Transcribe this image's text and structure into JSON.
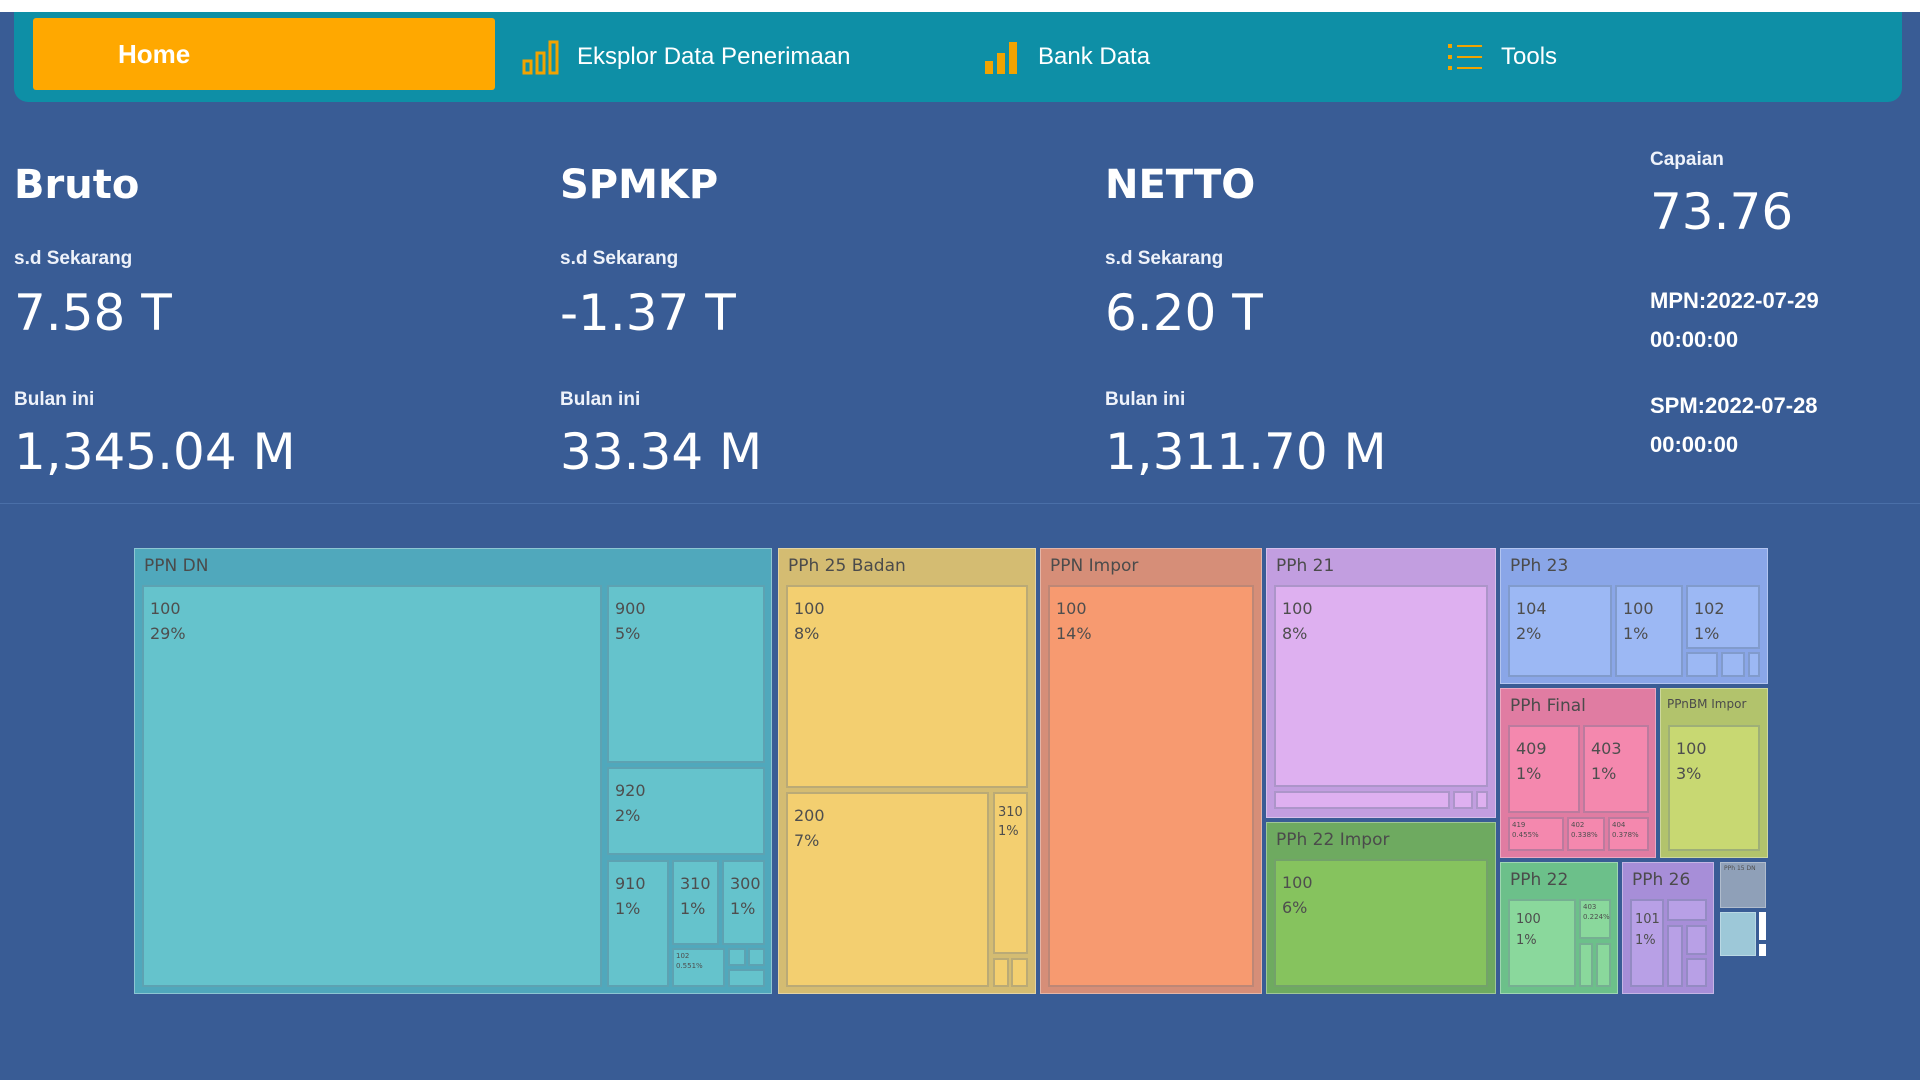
{
  "nav": {
    "home": "Home",
    "items": [
      {
        "label": "Eksplor Data Penerimaan",
        "icon": "bar-chart-outline-icon"
      },
      {
        "label": "Bank Data",
        "icon": "bar-chart-filled-icon"
      },
      {
        "label": "Tools",
        "icon": "list-icon"
      }
    ],
    "colors": {
      "bar": "#0e8fa6",
      "home": "#ffa800",
      "icons": "#f2a300"
    }
  },
  "metrics": [
    {
      "title": "Bruto",
      "sd_label": "s.d Sekarang",
      "sd_value": "7.58 T",
      "month_label": "Bulan ini",
      "month_value": "1,345.04 M"
    },
    {
      "title": "SPMKP",
      "sd_label": "s.d Sekarang",
      "sd_value": "-1.37 T",
      "month_label": "Bulan ini",
      "month_value": "33.34 M"
    },
    {
      "title": "NETTO",
      "sd_label": "s.d Sekarang",
      "sd_value": "6.20 T",
      "month_label": "Bulan ini",
      "month_value": "1,311.70 M"
    }
  ],
  "side": {
    "capaian_label": "Capaian",
    "capaian_value": "73.76",
    "mpn": "MPN:2022-07-29 00:00:00",
    "spm": "SPM:2022-07-28 00:00:00"
  },
  "treemap": {
    "groups": [
      {
        "name": "PPN DN",
        "color": "#50a8bc",
        "tile": "#65c3cc",
        "tiles": [
          {
            "code": "100",
            "pct": "29%"
          },
          {
            "code": "900",
            "pct": "5%"
          },
          {
            "code": "920",
            "pct": "2%"
          },
          {
            "code": "910",
            "pct": "1%"
          },
          {
            "code": "310",
            "pct": "1%"
          },
          {
            "code": "300",
            "pct": "1%"
          },
          {
            "code": "102",
            "pct": "0.551%"
          }
        ]
      },
      {
        "name": "PPh 25 Badan",
        "color": "#d4bc72",
        "tile": "#f3cf70",
        "tiles": [
          {
            "code": "100",
            "pct": "8%"
          },
          {
            "code": "200",
            "pct": "7%"
          },
          {
            "code": "310",
            "pct": "1%"
          }
        ]
      },
      {
        "name": "PPN Impor",
        "color": "#d68e78",
        "tile": "#f79a70",
        "tiles": [
          {
            "code": "100",
            "pct": "14%"
          }
        ]
      },
      {
        "name": "PPh 21",
        "color": "#c29ee0",
        "tile": "#deb0f0",
        "tiles": [
          {
            "code": "100",
            "pct": "8%"
          }
        ]
      },
      {
        "name": "PPh 22 Impor",
        "color": "#6eaa60",
        "tile": "#86c35e",
        "tiles": [
          {
            "code": "100",
            "pct": "6%"
          }
        ]
      },
      {
        "name": "PPh 23",
        "color": "#8aa6e8",
        "tile": "#9cb8f4",
        "tiles": [
          {
            "code": "104",
            "pct": "2%"
          },
          {
            "code": "100",
            "pct": "1%"
          },
          {
            "code": "102",
            "pct": "1%"
          }
        ]
      },
      {
        "name": "PPh Final",
        "color": "#e07ca2",
        "tile": "#f488ae",
        "tiles": [
          {
            "code": "409",
            "pct": "1%"
          },
          {
            "code": "403",
            "pct": "1%"
          },
          {
            "code": "419",
            "pct": "0.455%"
          },
          {
            "code": "402",
            "pct": "0.338%"
          },
          {
            "code": "404",
            "pct": "0.378%"
          }
        ]
      },
      {
        "name": "PPnBM Impor",
        "color": "#b2c36c",
        "tile": "#c8d872",
        "tiles": [
          {
            "code": "100",
            "pct": "3%"
          }
        ]
      },
      {
        "name": "PPh 22",
        "color": "#6cc08a",
        "tile": "#8ad89c",
        "tiles": [
          {
            "code": "100",
            "pct": "1%"
          },
          {
            "code": "403",
            "pct": "0.224%"
          }
        ]
      },
      {
        "name": "PPh 26",
        "color": "#a78ed8",
        "tile": "#b8a0e6",
        "tiles": [
          {
            "code": "101",
            "pct": "1%"
          }
        ]
      },
      {
        "name": "PPh 15 DN",
        "color": "#8fa0b8",
        "tile": "#9db0c8",
        "tiles": []
      }
    ]
  }
}
